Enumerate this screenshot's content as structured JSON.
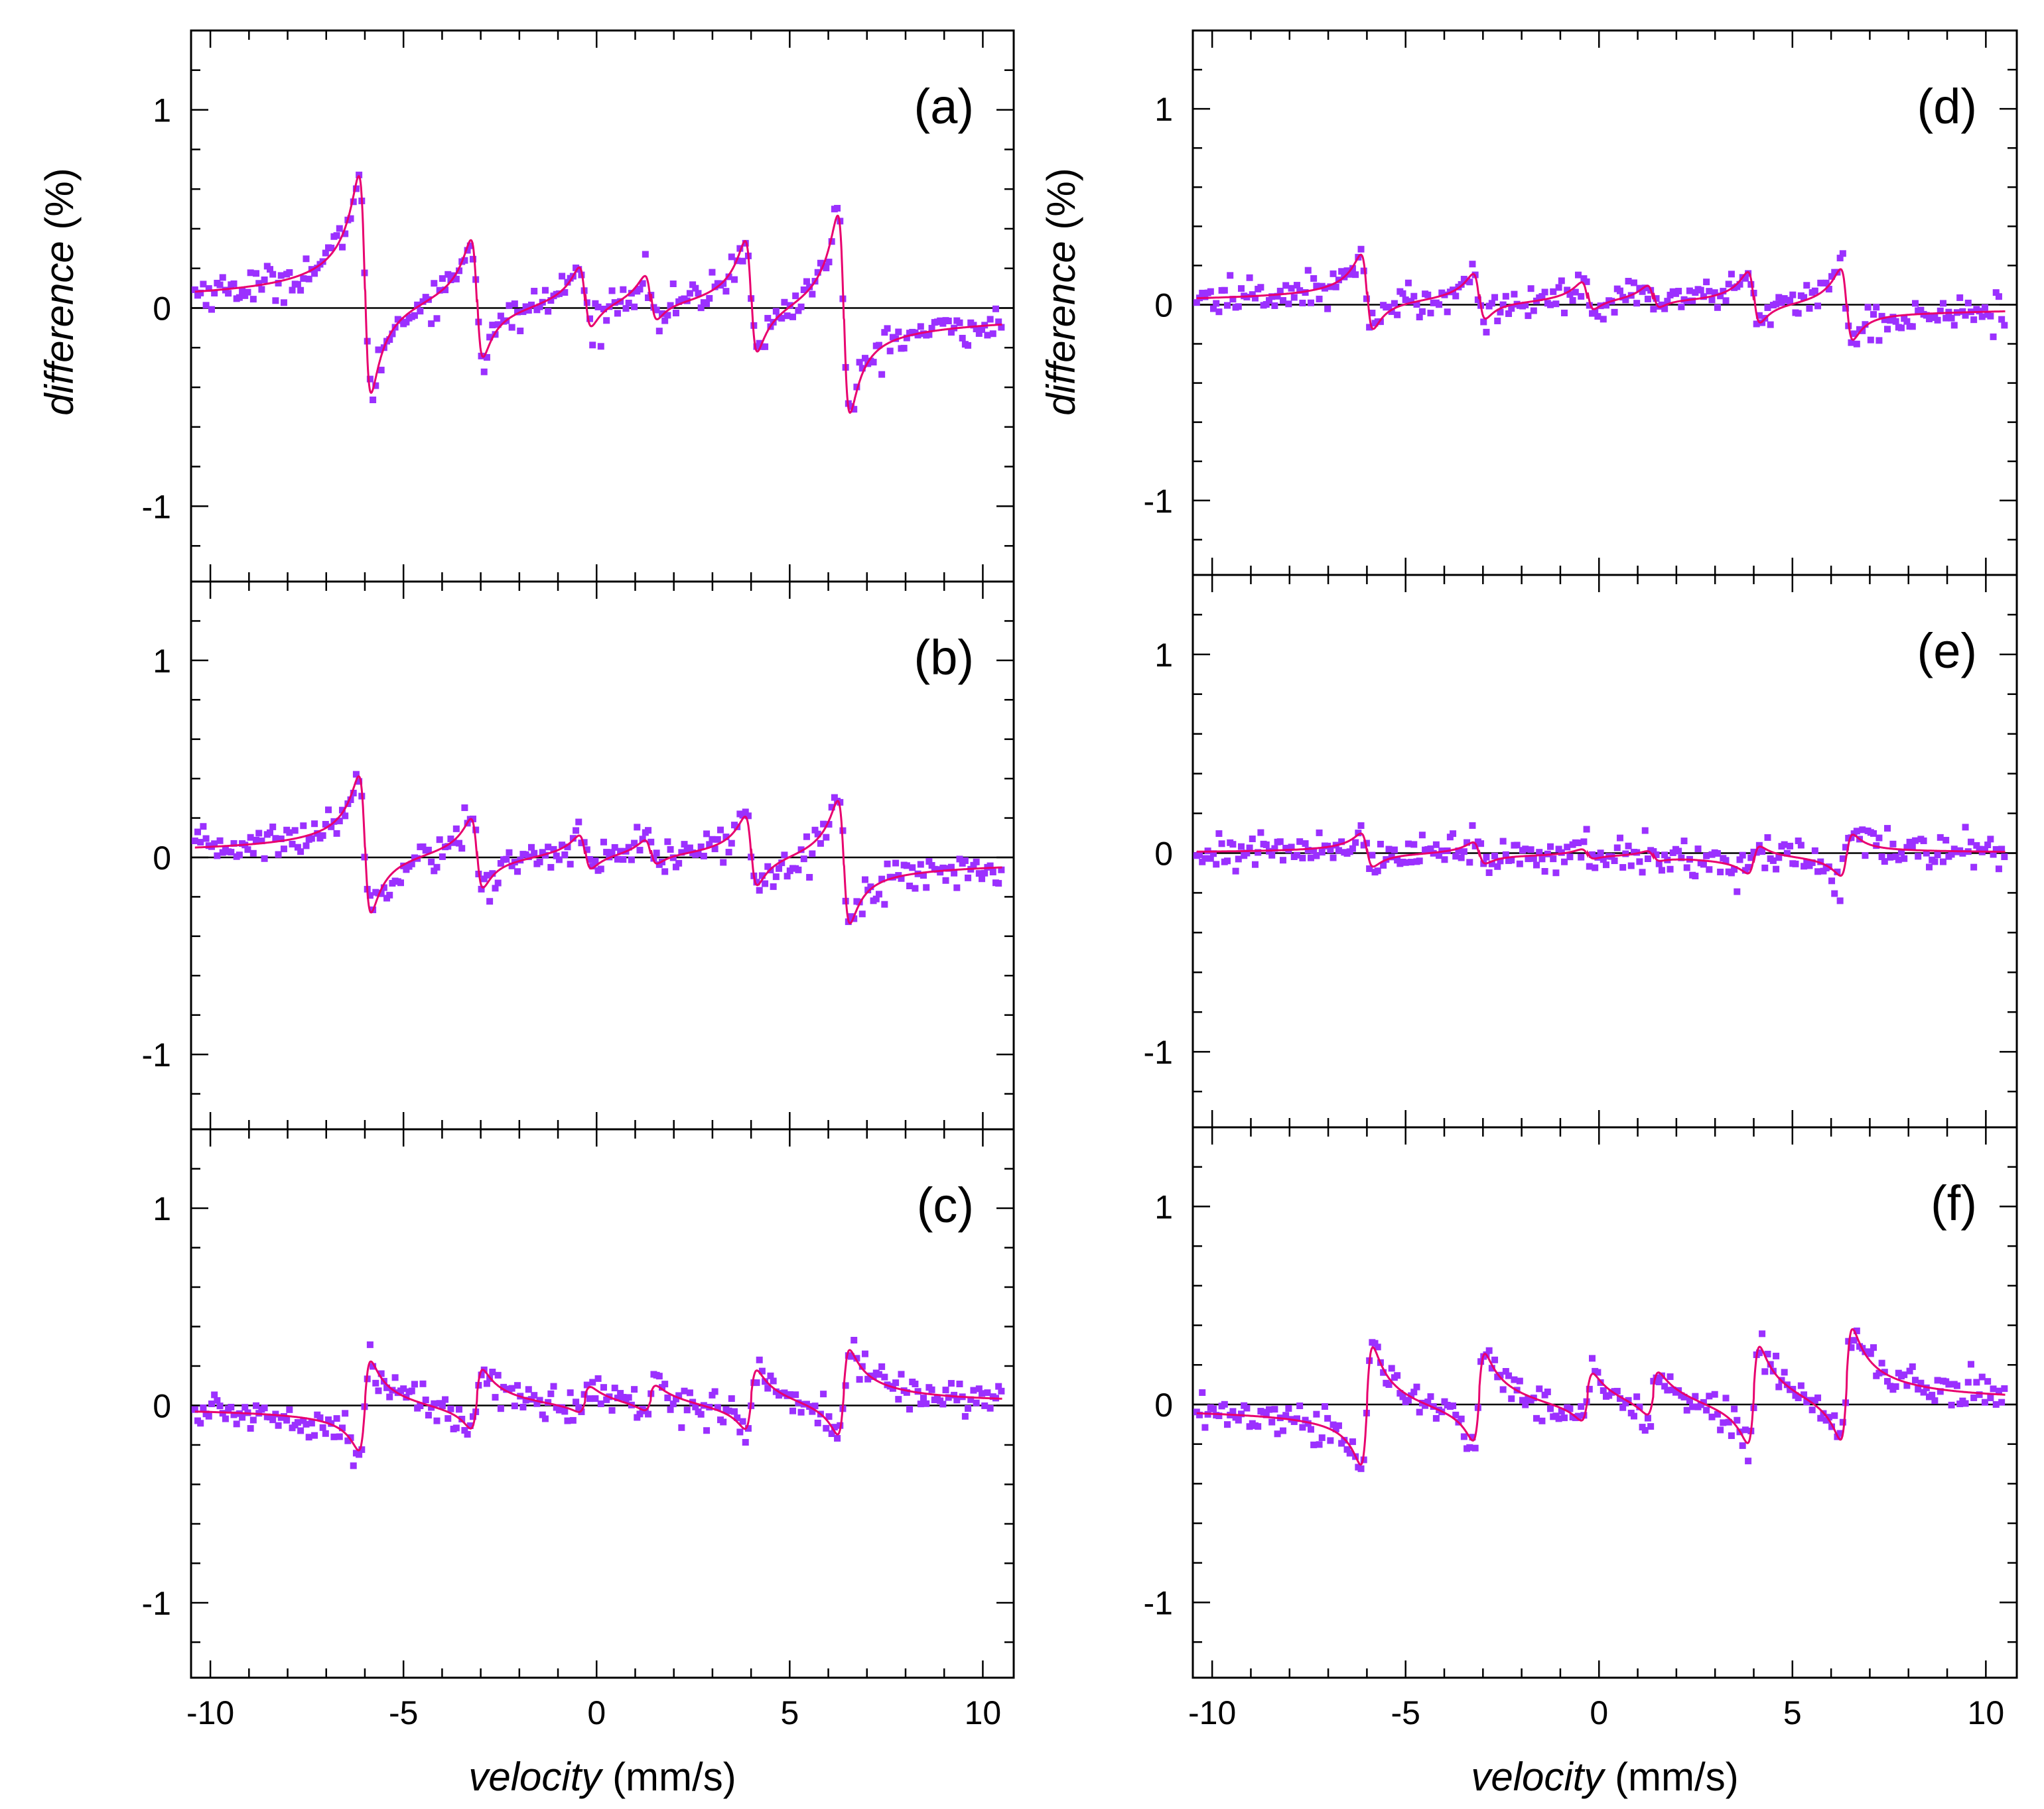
{
  "chart_data": {
    "type": "scatter",
    "title": "",
    "xlabel_italic": "velocity",
    "xlabel_unit": "(mm/s)",
    "ylabel_italic": "difference",
    "ylabel_unit": "(%)",
    "xlim": [
      -10.5,
      10.8
    ],
    "ylim": [
      -1.38,
      1.4
    ],
    "xticks": [
      -10,
      -5,
      0,
      5,
      10
    ],
    "yticks": [
      -1,
      0,
      1
    ],
    "x_tick_labels": [
      "-10",
      "-5",
      "0",
      "5",
      "10"
    ],
    "y_tick_labels": [
      "-1",
      "0",
      "1"
    ],
    "grid": false,
    "legend": "none",
    "colors": {
      "points": "#9b30ff",
      "fit": "#e8006e",
      "zero_line": "#000000"
    },
    "line_centers": [
      -6.0,
      -3.1,
      -0.3,
      1.4,
      4.0,
      6.4
    ],
    "panels": [
      {
        "label": "(a)",
        "column": "left",
        "row": 0,
        "series": [
          {
            "name": "data points",
            "marker": "square"
          },
          {
            "name": "fit",
            "style": "line"
          }
        ],
        "amplitudes": [
          1.15,
          0.65,
          0.36,
          0.28,
          0.62,
          1.05
        ],
        "signs": [
          1,
          1,
          1,
          1,
          1,
          1
        ],
        "offset": 0.08
      },
      {
        "label": "(b)",
        "column": "left",
        "row": 1,
        "series": [
          {
            "name": "data points",
            "marker": "square"
          },
          {
            "name": "fit",
            "style": "line"
          }
        ],
        "amplitudes": [
          0.72,
          0.38,
          0.2,
          0.15,
          0.38,
          0.65
        ],
        "signs": [
          1,
          1,
          1,
          1,
          1,
          1
        ],
        "offset": 0.04
      },
      {
        "label": "(c)",
        "column": "left",
        "row": 2,
        "series": [
          {
            "name": "data points",
            "marker": "square"
          },
          {
            "name": "fit",
            "style": "line"
          }
        ],
        "amplitudes": [
          0.42,
          0.27,
          0.1,
          0.1,
          0.27,
          0.4
        ],
        "signs": [
          -1,
          -1,
          -1,
          -1,
          -1,
          -1
        ],
        "offset": -0.05
      },
      {
        "label": "(d)",
        "column": "right",
        "row": 0,
        "series": [
          {
            "name": "data points",
            "marker": "square"
          },
          {
            "name": "fit",
            "style": "line"
          }
        ],
        "amplitudes": [
          0.42,
          0.27,
          0.18,
          0.15,
          0.3,
          0.4
        ],
        "signs": [
          1,
          1,
          1,
          1,
          1,
          1
        ],
        "offset": 0.06
      },
      {
        "label": "(e)",
        "column": "right",
        "row": 1,
        "series": [
          {
            "name": "data points",
            "marker": "square"
          },
          {
            "name": "fit",
            "style": "line"
          }
        ],
        "amplitudes": [
          0.18,
          0.12,
          0.06,
          0.06,
          0.15,
          0.22
        ],
        "signs": [
          1,
          1,
          1,
          1,
          -1,
          -1
        ],
        "offset": 0.02
      },
      {
        "label": "(f)",
        "column": "right",
        "row": 2,
        "series": [
          {
            "name": "data points",
            "marker": "square"
          },
          {
            "name": "fit",
            "style": "line"
          }
        ],
        "amplitudes": [
          0.55,
          0.4,
          0.2,
          0.18,
          0.45,
          0.52
        ],
        "signs": [
          -1,
          -1,
          -1,
          -1,
          -1,
          -1
        ],
        "offset": -0.07
      }
    ]
  }
}
